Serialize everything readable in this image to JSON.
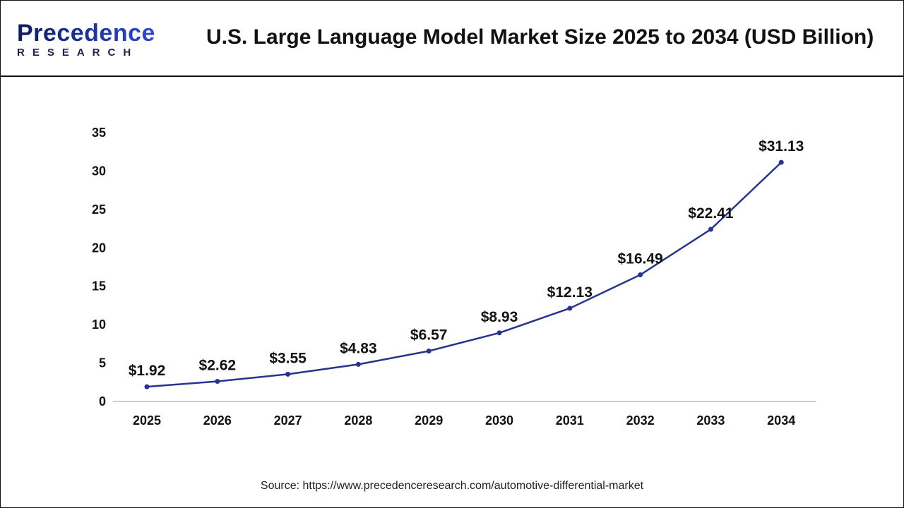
{
  "header": {
    "logo_main": "Precedence",
    "logo_sub": "RESEARCH",
    "title": "U.S. Large Language Model Market Size 2025 to 2034 (USD Billion)"
  },
  "chart_data": {
    "type": "line",
    "title": "U.S. Large Language Model Market Size 2025 to 2034 (USD Billion)",
    "categories": [
      "2025",
      "2026",
      "2027",
      "2028",
      "2029",
      "2030",
      "2031",
      "2032",
      "2033",
      "2034"
    ],
    "values": [
      1.92,
      2.62,
      3.55,
      4.83,
      6.57,
      8.93,
      12.13,
      16.49,
      22.41,
      31.13
    ],
    "data_labels": [
      "$1.92",
      "$2.62",
      "$3.55",
      "$4.83",
      "$6.57",
      "$8.93",
      "$12.13",
      "$16.49",
      "$22.41",
      "$31.13"
    ],
    "yticks": [
      0,
      5,
      10,
      15,
      20,
      25,
      30,
      35
    ],
    "ylim": [
      0,
      35
    ],
    "grid": false,
    "line_color": "#25358f",
    "xlabel": "",
    "ylabel": ""
  },
  "source": "Source: https://www.precedenceresearch.com/automotive-differential-market"
}
